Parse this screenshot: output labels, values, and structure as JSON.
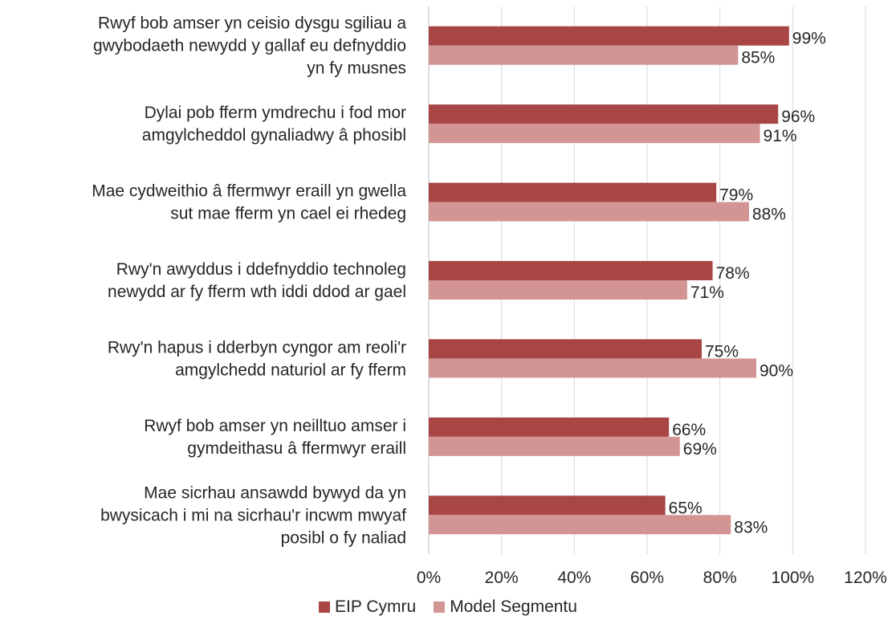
{
  "chart_data": {
    "type": "bar",
    "orientation": "horizontal",
    "categories": [
      [
        "Rwyf bob amser yn ceisio dysgu sgiliau a",
        "gwybodaeth newydd y gallaf eu defnyddio",
        "yn fy musnes"
      ],
      [
        "Dylai pob fferm ymdrechu i fod mor",
        "amgylcheddol gynaliadwy â phosibl"
      ],
      [
        "Mae cydweithio â ffermwyr eraill yn gwella",
        "sut mae fferm yn cael ei rhedeg"
      ],
      [
        "Rwy'n awyddus i ddefnyddio technoleg",
        "newydd ar fy fferm wth iddi ddod ar gael"
      ],
      [
        "Rwy'n hapus i dderbyn cyngor am reoli'r",
        "amgylchedd naturiol ar fy fferm"
      ],
      [
        "Rwyf bob amser yn neilltuo amser i",
        "gymdeithasu â ffermwyr eraill"
      ],
      [
        "Mae sicrhau ansawdd bywyd da yn",
        "bwysicach i mi na sicrhau'r incwm mwyaf",
        "posibl o fy naliad"
      ]
    ],
    "series": [
      {
        "name": "EIP Cymru",
        "color": "#a84545",
        "values": [
          99,
          96,
          79,
          78,
          75,
          66,
          65
        ]
      },
      {
        "name": "Model Segmentu",
        "color": "#d39494",
        "values": [
          85,
          91,
          88,
          71,
          90,
          69,
          83
        ]
      }
    ],
    "xlim": [
      0,
      120
    ],
    "xticks": [
      "0%",
      "20%",
      "40%",
      "60%",
      "80%",
      "100%",
      "120%"
    ],
    "tick_step": 20,
    "value_suffix": "%",
    "grid": "vertical",
    "legend_position": "bottom"
  },
  "legend": {
    "items": [
      {
        "label": "EIP Cymru",
        "color": "#a84545"
      },
      {
        "label": "Model Segmentu",
        "color": "#d39494"
      }
    ]
  }
}
